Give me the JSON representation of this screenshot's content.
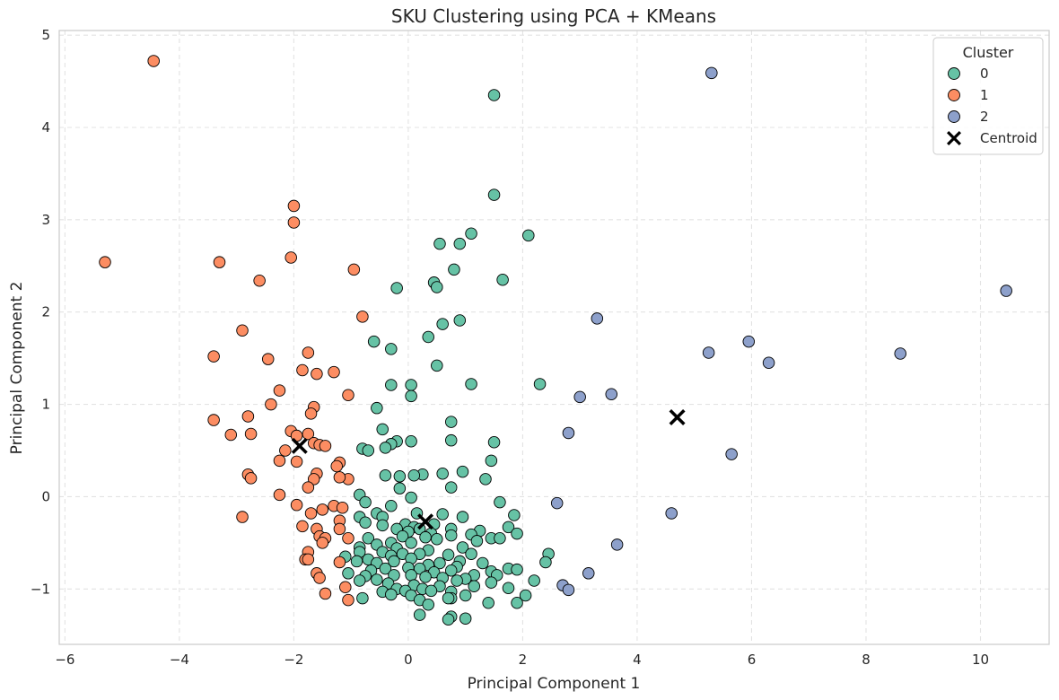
{
  "chart_data": {
    "type": "scatter",
    "title": "SKU Clustering using PCA + KMeans",
    "xlabel": "Principal Component 1",
    "ylabel": "Principal Component 2",
    "xlim": [
      -6.1,
      11.2
    ],
    "ylim": [
      -1.6,
      5.05
    ],
    "xticks": [
      -6,
      -4,
      -2,
      0,
      2,
      4,
      6,
      8,
      10
    ],
    "yticks": [
      -1,
      0,
      1,
      2,
      3,
      4,
      5
    ],
    "xtick_labels": [
      "−6",
      "−4",
      "−2",
      "0",
      "2",
      "4",
      "6",
      "8",
      "10"
    ],
    "ytick_labels": [
      "−1",
      "0",
      "1",
      "2",
      "3",
      "4",
      "5"
    ],
    "grid": true,
    "legend": {
      "title": "Cluster",
      "placement": "top-right"
    },
    "series": [
      {
        "name": "0",
        "color": "#66c2a5",
        "points": [
          [
            1.5,
            4.35
          ],
          [
            1.5,
            3.27
          ],
          [
            2.1,
            2.83
          ],
          [
            1.1,
            2.85
          ],
          [
            0.9,
            2.74
          ],
          [
            0.55,
            2.74
          ],
          [
            0.8,
            2.46
          ],
          [
            1.65,
            2.35
          ],
          [
            0.45,
            2.32
          ],
          [
            0.5,
            2.27
          ],
          [
            -0.2,
            2.26
          ],
          [
            0.9,
            1.91
          ],
          [
            0.6,
            1.87
          ],
          [
            0.35,
            1.73
          ],
          [
            -0.6,
            1.68
          ],
          [
            -0.3,
            1.6
          ],
          [
            0.5,
            1.42
          ],
          [
            2.3,
            1.22
          ],
          [
            1.1,
            1.22
          ],
          [
            -0.3,
            1.21
          ],
          [
            0.05,
            1.21
          ],
          [
            0.05,
            1.09
          ],
          [
            -0.55,
            0.96
          ],
          [
            0.75,
            0.81
          ],
          [
            -0.45,
            0.73
          ],
          [
            -0.2,
            0.6
          ],
          [
            0.75,
            0.61
          ],
          [
            0.05,
            0.6
          ],
          [
            1.5,
            0.59
          ],
          [
            -0.3,
            0.57
          ],
          [
            -0.4,
            0.53
          ],
          [
            -0.8,
            0.52
          ],
          [
            -0.7,
            0.5
          ],
          [
            1.45,
            0.39
          ],
          [
            0.95,
            0.27
          ],
          [
            0.6,
            0.25
          ],
          [
            0.25,
            0.24
          ],
          [
            0.1,
            0.23
          ],
          [
            -0.15,
            0.22
          ],
          [
            -0.4,
            0.23
          ],
          [
            1.35,
            0.19
          ],
          [
            0.75,
            0.1
          ],
          [
            -0.15,
            0.09
          ],
          [
            -0.85,
            0.02
          ],
          [
            0.05,
            -0.01
          ],
          [
            1.6,
            -0.06
          ],
          [
            -0.75,
            -0.06
          ],
          [
            -0.3,
            -0.1
          ],
          [
            0.15,
            -0.18
          ],
          [
            0.6,
            -0.19
          ],
          [
            -0.55,
            -0.18
          ],
          [
            -0.45,
            -0.22
          ],
          [
            -0.85,
            -0.22
          ],
          [
            0.95,
            -0.22
          ],
          [
            1.85,
            -0.2
          ],
          [
            -0.05,
            -0.3
          ],
          [
            -0.75,
            -0.28
          ],
          [
            0.45,
            -0.3
          ],
          [
            0.1,
            -0.33
          ],
          [
            0.2,
            -0.35
          ],
          [
            -0.2,
            -0.35
          ],
          [
            0.75,
            -0.35
          ],
          [
            1.25,
            -0.37
          ],
          [
            1.75,
            -0.33
          ],
          [
            -0.45,
            -0.31
          ],
          [
            0.0,
            -0.38
          ],
          [
            0.4,
            -0.4
          ],
          [
            -0.1,
            -0.43
          ],
          [
            1.1,
            -0.41
          ],
          [
            1.45,
            -0.45
          ],
          [
            1.9,
            -0.4
          ],
          [
            0.75,
            -0.42
          ],
          [
            -0.7,
            -0.45
          ],
          [
            0.3,
            -0.44
          ],
          [
            -0.3,
            -0.5
          ],
          [
            0.5,
            -0.46
          ],
          [
            1.2,
            -0.48
          ],
          [
            1.6,
            -0.45
          ],
          [
            0.05,
            -0.5
          ],
          [
            -0.55,
            -0.52
          ],
          [
            -0.85,
            -0.55
          ],
          [
            0.95,
            -0.55
          ],
          [
            -0.2,
            -0.56
          ],
          [
            0.35,
            -0.58
          ],
          [
            -0.45,
            -0.6
          ],
          [
            0.2,
            -0.62
          ],
          [
            -0.1,
            -0.62
          ],
          [
            -0.85,
            -0.6
          ],
          [
            0.7,
            -0.63
          ],
          [
            1.1,
            -0.62
          ],
          [
            2.45,
            -0.62
          ],
          [
            -1.1,
            -0.65
          ],
          [
            -0.3,
            -0.64
          ],
          [
            0.05,
            -0.67
          ],
          [
            0.55,
            -0.72
          ],
          [
            -0.7,
            -0.68
          ],
          [
            -0.55,
            -0.72
          ],
          [
            -0.25,
            -0.7
          ],
          [
            0.9,
            -0.7
          ],
          [
            1.3,
            -0.72
          ],
          [
            0.35,
            -0.74
          ],
          [
            2.4,
            -0.71
          ],
          [
            -0.9,
            -0.7
          ],
          [
            -0.4,
            -0.78
          ],
          [
            0.0,
            -0.77
          ],
          [
            0.2,
            -0.78
          ],
          [
            0.85,
            -0.76
          ],
          [
            1.75,
            -0.78
          ],
          [
            1.9,
            -0.79
          ],
          [
            -0.65,
            -0.8
          ],
          [
            0.45,
            -0.82
          ],
          [
            0.75,
            -0.8
          ],
          [
            1.45,
            -0.81
          ],
          [
            -1.05,
            -0.83
          ],
          [
            -0.25,
            -0.85
          ],
          [
            0.05,
            -0.85
          ],
          [
            0.3,
            -0.87
          ],
          [
            1.15,
            -0.85
          ],
          [
            1.55,
            -0.85
          ],
          [
            -0.75,
            -0.86
          ],
          [
            0.6,
            -0.88
          ],
          [
            1.0,
            -0.89
          ],
          [
            -0.55,
            -0.9
          ],
          [
            0.85,
            -0.91
          ],
          [
            2.2,
            -0.91
          ],
          [
            -0.85,
            -0.91
          ],
          [
            1.45,
            -0.93
          ],
          [
            -0.35,
            -0.94
          ],
          [
            0.1,
            -0.96
          ],
          [
            0.55,
            -0.97
          ],
          [
            -0.2,
            -1.0
          ],
          [
            0.25,
            -1.0
          ],
          [
            1.15,
            -0.97
          ],
          [
            -0.05,
            -1.02
          ],
          [
            0.75,
            -1.03
          ],
          [
            1.75,
            -0.99
          ],
          [
            -0.45,
            -1.03
          ],
          [
            -0.3,
            -1.06
          ],
          [
            0.4,
            -1.02
          ],
          [
            0.05,
            -1.07
          ],
          [
            1.0,
            -1.07
          ],
          [
            2.05,
            -1.07
          ],
          [
            -0.8,
            -1.1
          ],
          [
            0.2,
            -1.12
          ],
          [
            0.75,
            -1.1
          ],
          [
            1.4,
            -1.15
          ],
          [
            1.9,
            -1.15
          ],
          [
            0.7,
            -1.1
          ],
          [
            0.35,
            -1.17
          ],
          [
            0.75,
            -1.3
          ],
          [
            0.2,
            -1.28
          ],
          [
            1.0,
            -1.32
          ],
          [
            0.7,
            -1.33
          ]
        ]
      },
      {
        "name": "1",
        "color": "#fc8d62",
        "points": [
          [
            -4.45,
            4.72
          ],
          [
            -5.3,
            2.54
          ],
          [
            -3.3,
            2.54
          ],
          [
            -2.0,
            3.15
          ],
          [
            -2.0,
            2.97
          ],
          [
            -2.05,
            2.59
          ],
          [
            -2.6,
            2.34
          ],
          [
            -0.95,
            2.46
          ],
          [
            -0.8,
            1.95
          ],
          [
            -2.9,
            1.8
          ],
          [
            -1.75,
            1.56
          ],
          [
            -3.4,
            1.52
          ],
          [
            -2.45,
            1.49
          ],
          [
            -1.85,
            1.37
          ],
          [
            -1.3,
            1.35
          ],
          [
            -1.6,
            1.33
          ],
          [
            -2.25,
            1.15
          ],
          [
            -1.05,
            1.1
          ],
          [
            -2.4,
            1.0
          ],
          [
            -1.65,
            0.97
          ],
          [
            -1.7,
            0.9
          ],
          [
            -2.8,
            0.87
          ],
          [
            -3.4,
            0.83
          ],
          [
            -2.05,
            0.71
          ],
          [
            -1.95,
            0.66
          ],
          [
            -1.75,
            0.68
          ],
          [
            -3.1,
            0.67
          ],
          [
            -2.75,
            0.68
          ],
          [
            -1.65,
            0.58
          ],
          [
            -1.55,
            0.56
          ],
          [
            -1.45,
            0.55
          ],
          [
            -2.15,
            0.5
          ],
          [
            -1.2,
            0.37
          ],
          [
            -2.25,
            0.39
          ],
          [
            -1.95,
            0.38
          ],
          [
            -1.25,
            0.33
          ],
          [
            -1.6,
            0.25
          ],
          [
            -2.8,
            0.24
          ],
          [
            -1.65,
            0.19
          ],
          [
            -1.05,
            0.19
          ],
          [
            -1.2,
            0.21
          ],
          [
            -2.75,
            0.2
          ],
          [
            -1.75,
            0.1
          ],
          [
            -2.25,
            0.02
          ],
          [
            -1.95,
            -0.09
          ],
          [
            -1.5,
            -0.14
          ],
          [
            -1.3,
            -0.1
          ],
          [
            -1.15,
            -0.12
          ],
          [
            -1.7,
            -0.18
          ],
          [
            -2.9,
            -0.22
          ],
          [
            -1.2,
            -0.26
          ],
          [
            -1.85,
            -0.32
          ],
          [
            -1.6,
            -0.35
          ],
          [
            -1.2,
            -0.35
          ],
          [
            -1.55,
            -0.43
          ],
          [
            -1.05,
            -0.45
          ],
          [
            -1.45,
            -0.45
          ],
          [
            -1.5,
            -0.5
          ],
          [
            -1.75,
            -0.6
          ],
          [
            -1.8,
            -0.68
          ],
          [
            -1.75,
            -0.68
          ],
          [
            -1.2,
            -0.71
          ],
          [
            -1.6,
            -0.83
          ],
          [
            -1.55,
            -0.88
          ],
          [
            -1.45,
            -1.05
          ],
          [
            -1.1,
            -0.98
          ],
          [
            -1.05,
            -1.12
          ]
        ]
      },
      {
        "name": "2",
        "color": "#8da0cb",
        "points": [
          [
            5.3,
            4.59
          ],
          [
            10.45,
            2.23
          ],
          [
            3.3,
            1.93
          ],
          [
            5.95,
            1.68
          ],
          [
            5.25,
            1.56
          ],
          [
            8.6,
            1.55
          ],
          [
            6.3,
            1.45
          ],
          [
            3.55,
            1.11
          ],
          [
            3.0,
            1.08
          ],
          [
            2.8,
            0.69
          ],
          [
            5.65,
            0.46
          ],
          [
            2.6,
            -0.07
          ],
          [
            4.6,
            -0.18
          ],
          [
            3.65,
            -0.52
          ],
          [
            3.15,
            -0.83
          ],
          [
            2.7,
            -0.96
          ],
          [
            2.8,
            -1.01
          ]
        ]
      }
    ],
    "centroids": {
      "name": "Centroid",
      "marker": "X",
      "color": "#000000",
      "points": [
        [
          -1.9,
          0.55
        ],
        [
          0.3,
          -0.27
        ],
        [
          4.7,
          0.86
        ]
      ]
    }
  }
}
